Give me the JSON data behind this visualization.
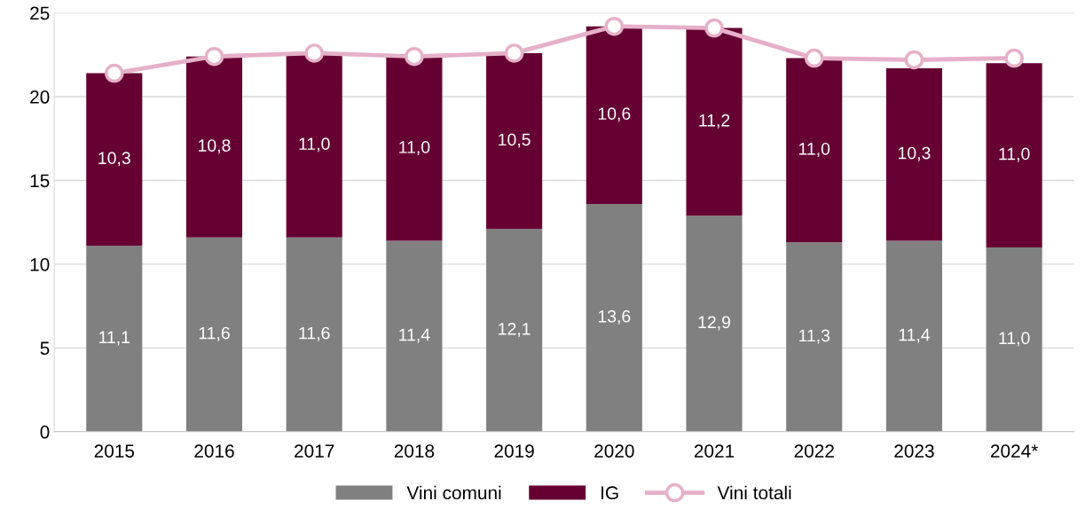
{
  "chart_data": {
    "type": "bar",
    "stacked": true,
    "categories": [
      "2015",
      "2016",
      "2017",
      "2018",
      "2019",
      "2020",
      "2021",
      "2022",
      "2023",
      "2024*"
    ],
    "series": [
      {
        "name": "Vini comuni",
        "color": "#808080",
        "values": [
          11.1,
          11.6,
          11.6,
          11.4,
          12.1,
          13.6,
          12.9,
          11.3,
          11.4,
          11.0
        ],
        "value_labels": [
          "11,1",
          "11,6",
          "11,6",
          "11,4",
          "12,1",
          "13,6",
          "12,9",
          "11,3",
          "11,4",
          "11,0"
        ]
      },
      {
        "name": "IG",
        "color": "#660033",
        "values": [
          10.3,
          10.8,
          11.0,
          11.0,
          10.5,
          10.6,
          11.2,
          11.0,
          10.3,
          11.0
        ],
        "value_labels": [
          "10,3",
          "10,8",
          "11,0",
          "11,0",
          "10,5",
          "10,6",
          "11,2",
          "11,0",
          "10,3",
          "11,0"
        ]
      },
      {
        "name": "Vini totali",
        "type": "line",
        "color": "#e6b0c8",
        "marker": "circle",
        "values": [
          21.4,
          22.4,
          22.6,
          22.4,
          22.6,
          24.2,
          24.1,
          22.3,
          22.2,
          22.3
        ]
      }
    ],
    "ylim": [
      0,
      25
    ],
    "yticks": [
      0,
      5,
      10,
      15,
      20,
      25
    ],
    "grid": "y",
    "legend": "bottom"
  }
}
